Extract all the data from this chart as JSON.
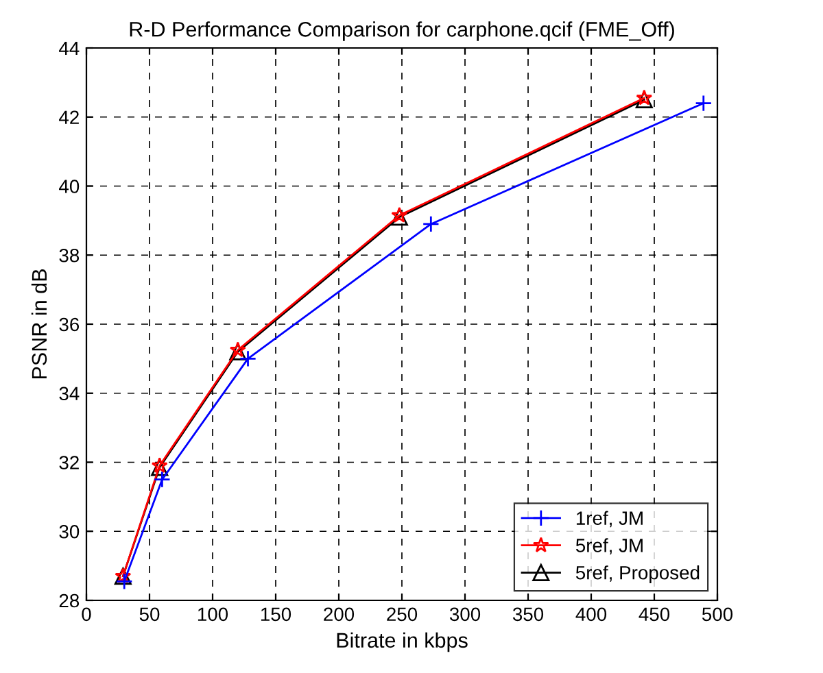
{
  "chart_data": {
    "type": "line",
    "title": "R-D Performance Comparison for carphone.qcif (FME_Off)",
    "xlabel": "Bitrate in kbps",
    "ylabel": "PSNR in dB",
    "xlim": [
      0,
      500
    ],
    "xticks": [
      0,
      50,
      100,
      150,
      200,
      250,
      300,
      350,
      400,
      450,
      500
    ],
    "ylim": [
      28,
      44
    ],
    "yticks": [
      28,
      30,
      32,
      34,
      36,
      38,
      40,
      42,
      44
    ],
    "grid": true,
    "legend": "bottom right",
    "line_style": "solid",
    "series": [
      {
        "name": "1ref, JM",
        "color": "#0000ff",
        "marker": "cross",
        "x": [
          30,
          60,
          128,
          273,
          489
        ],
        "values": [
          28.55,
          31.5,
          35.0,
          38.9,
          42.4
        ]
      },
      {
        "name": "5ref, JM",
        "color": "#ff0000",
        "marker": "star",
        "x": [
          29,
          58,
          120,
          248,
          442
        ],
        "values": [
          28.7,
          31.9,
          35.25,
          39.15,
          42.55
        ]
      },
      {
        "name": "5ref, Proposed",
        "color": "#000000",
        "marker": "triangle",
        "x": [
          29,
          58,
          120,
          248,
          442
        ],
        "values": [
          28.7,
          31.85,
          35.2,
          39.1,
          42.5
        ]
      }
    ]
  }
}
